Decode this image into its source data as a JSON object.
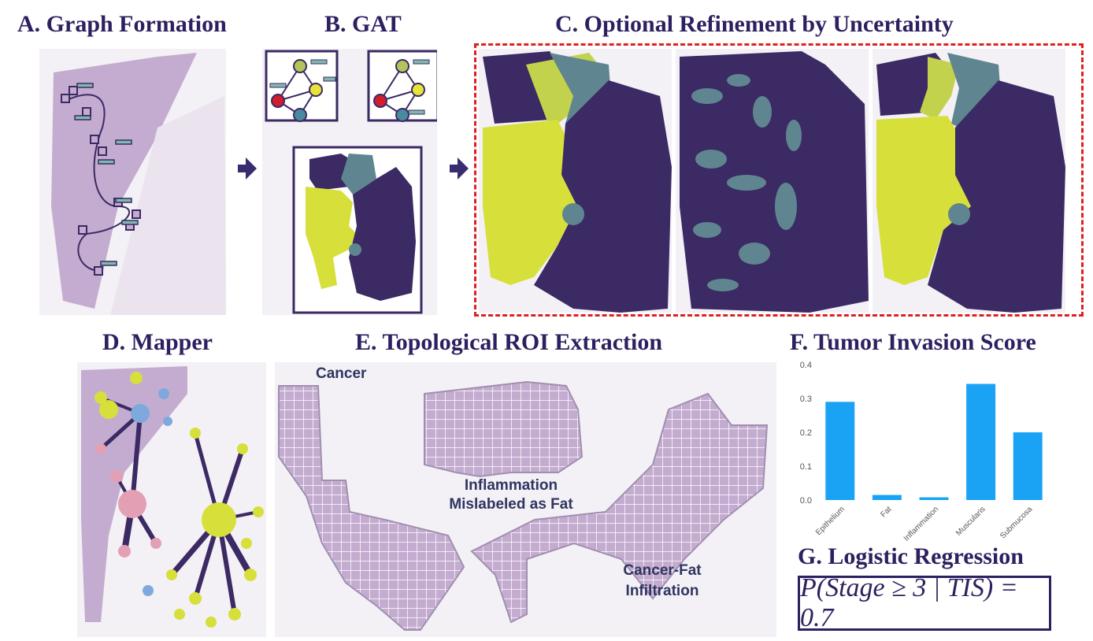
{
  "titles": {
    "a": "A. Graph Formation",
    "b": "B. GAT",
    "c": "C. Optional Refinement by Uncertainty",
    "d": "D. Mapper",
    "e": "E. Topological ROI Extraction",
    "f": "F. Tumor Invasion Score",
    "g": "G. Logistic Regression"
  },
  "roi_labels": {
    "cancer": "Cancer",
    "inflammation_line1": "Inflammation",
    "inflammation_line2": "Mislabeled as Fat",
    "cancer_fat_line1": "Cancer-Fat",
    "cancer_fat_line2": "Infiltration"
  },
  "formula": "P(Stage ≥ 3 | TIS) = 0.7",
  "colors": {
    "dark_purple": "#3b2a63",
    "yellow": "#d7df3a",
    "teal": "#5f8590",
    "tissue": "#c7b2d2",
    "bar": "#1aa3f5",
    "red_dash": "#e02020"
  },
  "chart_data": {
    "type": "bar",
    "categories": [
      "Epithelium",
      "Fat",
      "Inflammation",
      "Muscularis",
      "Submucosa"
    ],
    "values": [
      0.29,
      0.015,
      0.008,
      0.343,
      0.2
    ],
    "yticks": [
      "0.0",
      "0.1",
      "0.2",
      "0.3",
      "0.4"
    ],
    "ylim": [
      0,
      0.4
    ],
    "grid": false
  }
}
